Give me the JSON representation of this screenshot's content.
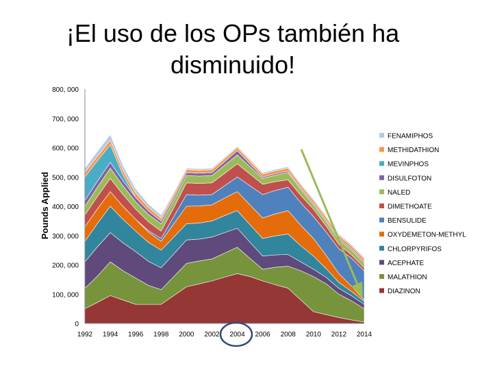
{
  "slide": {
    "title": "¡El uso de los OPs también ha disminuido!"
  },
  "chart_data": {
    "type": "area",
    "stacked": true,
    "ylabel": "Pounds Applied",
    "xlabel": "",
    "ylim": [
      0,
      800000
    ],
    "y_ticks": [
      "0",
      "100, 000",
      "200, 000",
      "300, 000",
      "400, 000",
      "500, 000",
      "600, 000",
      "700, 000",
      "800, 000"
    ],
    "y_tick_values": [
      0,
      100000,
      200000,
      300000,
      400000,
      500000,
      600000,
      700000,
      800000
    ],
    "x_ticks": [
      "1992",
      "1994",
      "1996",
      "1998",
      "2000",
      "2002",
      "2004",
      "2006",
      "2008",
      "2010",
      "2012",
      "2014"
    ],
    "x_tick_values": [
      1992,
      1994,
      1996,
      1998,
      2000,
      2002,
      2004,
      2006,
      2008,
      2010,
      2012,
      2014
    ],
    "x": [
      1992,
      1993,
      1994,
      1995,
      1996,
      1997,
      1998,
      1999,
      2000,
      2001,
      2002,
      2003,
      2004,
      2005,
      2006,
      2007,
      2008,
      2009,
      2010,
      2011,
      2012,
      2013,
      2014
    ],
    "legend_position": "right",
    "highlighted_x_label": "2004",
    "series": [
      {
        "name": "DIAZINON",
        "color": "#953735",
        "values": [
          50000,
          72000,
          95000,
          80000,
          65000,
          65000,
          65000,
          95000,
          125000,
          135000,
          145000,
          158000,
          170000,
          160000,
          145000,
          132000,
          120000,
          80000,
          40000,
          30000,
          20000,
          12000,
          5000
        ]
      },
      {
        "name": "MALATHION",
        "color": "#77933c",
        "values": [
          70000,
          90000,
          115000,
          100000,
          90000,
          65000,
          50000,
          65000,
          80000,
          78000,
          75000,
          82000,
          90000,
          62000,
          40000,
          60000,
          75000,
          100000,
          120000,
          105000,
          80000,
          65000,
          45000
        ]
      },
      {
        "name": "ACEPHATE",
        "color": "#604a7b",
        "values": [
          90000,
          100000,
          100000,
          95000,
          90000,
          82000,
          75000,
          77000,
          80000,
          75000,
          75000,
          70000,
          65000,
          55000,
          45000,
          42000,
          40000,
          30000,
          25000,
          22000,
          20000,
          17000,
          15000
        ]
      },
      {
        "name": "CHLORPYRIFOS",
        "color": "#31859c",
        "values": [
          70000,
          80000,
          90000,
          80000,
          70000,
          65000,
          60000,
          58000,
          55000,
          55000,
          55000,
          58000,
          60000,
          60000,
          60000,
          65000,
          70000,
          55000,
          45000,
          30000,
          20000,
          15000,
          10000
        ]
      },
      {
        "name": "OXYDEMETON-METHYL",
        "color": "#e46c0a",
        "values": [
          50000,
          50000,
          50000,
          45000,
          40000,
          35000,
          30000,
          45000,
          60000,
          58000,
          55000,
          60000,
          65000,
          68000,
          70000,
          75000,
          80000,
          70000,
          60000,
          45000,
          30000,
          18000,
          5000
        ]
      },
      {
        "name": "BENSULIDE",
        "color": "#4f81bd",
        "values": [
          0,
          0,
          0,
          0,
          0,
          5000,
          10000,
          25000,
          40000,
          37000,
          35000,
          42000,
          50000,
          65000,
          80000,
          80000,
          80000,
          77000,
          75000,
          80000,
          85000,
          95000,
          100000
        ]
      },
      {
        "name": "DIMETHOATE",
        "color": "#c0504d",
        "values": [
          40000,
          42000,
          45000,
          40000,
          35000,
          30000,
          25000,
          30000,
          40000,
          40000,
          40000,
          42000,
          45000,
          40000,
          35000,
          30000,
          25000,
          25000,
          25000,
          20000,
          15000,
          12000,
          10000
        ]
      },
      {
        "name": "NALED",
        "color": "#9bbb59",
        "values": [
          30000,
          32000,
          35000,
          30000,
          25000,
          25000,
          25000,
          25000,
          25000,
          25000,
          25000,
          28000,
          30000,
          25000,
          20000,
          22000,
          25000,
          20000,
          15000,
          15000,
          15000,
          15000,
          15000
        ]
      },
      {
        "name": "DISULFOTON",
        "color": "#8064a2",
        "values": [
          20000,
          20000,
          20000,
          17000,
          15000,
          12000,
          10000,
          10000,
          10000,
          10000,
          10000,
          12000,
          15000,
          10000,
          5000,
          5000,
          5000,
          5000,
          5000,
          5000,
          5000,
          5000,
          5000
        ]
      },
      {
        "name": "MEVINPHOS",
        "color": "#4bacc6",
        "values": [
          80000,
          70000,
          60000,
          20000,
          0,
          0,
          0,
          0,
          0,
          0,
          0,
          0,
          0,
          0,
          0,
          0,
          0,
          0,
          0,
          0,
          0,
          0,
          0
        ]
      },
      {
        "name": "METHIDATHION",
        "color": "#f79646",
        "values": [
          15000,
          15000,
          15000,
          15000,
          15000,
          12000,
          10000,
          10000,
          10000,
          10000,
          10000,
          10000,
          10000,
          10000,
          10000,
          10000,
          10000,
          10000,
          10000,
          10000,
          10000,
          10000,
          10000
        ]
      },
      {
        "name": "FENAMIPHOS",
        "color": "#b7c9e4",
        "values": [
          15000,
          17000,
          20000,
          17000,
          15000,
          12000,
          10000,
          7000,
          5000,
          5000,
          5000,
          5000,
          5000,
          5000,
          5000,
          5000,
          5000,
          5000,
          5000,
          5000,
          5000,
          5000,
          5000
        ]
      }
    ]
  }
}
